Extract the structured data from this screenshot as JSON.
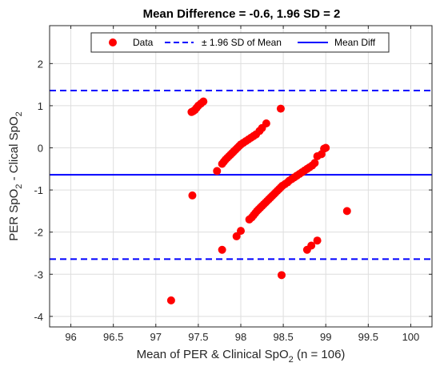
{
  "chart_data": {
    "type": "scatter",
    "title": "Mean Difference = -0.6, 1.96 SD = 2",
    "xlabel": {
      "prefix": "Mean of PER & Clinical SpO",
      "sub": "2",
      "suffix": " (n = 106)"
    },
    "ylabel": {
      "prefix": "PER SpO",
      "sub1": "2",
      "mid": " - Clical SpO",
      "sub2": "2"
    },
    "xlim": [
      95.75,
      100.25
    ],
    "ylim": [
      -4.25,
      2.9
    ],
    "xticks": [
      96,
      96.5,
      97,
      97.5,
      98,
      98.5,
      99,
      99.5,
      100
    ],
    "xtick_labels": [
      "96",
      "96.5",
      "97",
      "97.5",
      "98",
      "98.5",
      "99",
      "99.5",
      "100"
    ],
    "yticks": [
      -4,
      -3,
      -2,
      -1,
      0,
      1,
      2
    ],
    "ytick_labels": [
      "-4",
      "-3",
      "-2",
      "-1",
      "0",
      "1",
      "2"
    ],
    "grid": true,
    "legend_position": "top",
    "legend": {
      "data": "Data",
      "sd": "± 1.96 SD of Mean",
      "mean": "Mean Diff"
    },
    "mean_diff": -0.64,
    "upper_sd": 1.36,
    "lower_sd": -2.64,
    "colors": {
      "points": "#ff0000",
      "lines": "#0000ff"
    },
    "points": [
      [
        97.42,
        0.85
      ],
      [
        97.44,
        0.87
      ],
      [
        97.46,
        0.9
      ],
      [
        97.48,
        0.95
      ],
      [
        97.5,
        1.0
      ],
      [
        97.53,
        1.05
      ],
      [
        97.56,
        1.1
      ],
      [
        97.78,
        -0.38
      ],
      [
        97.8,
        -0.33
      ],
      [
        97.82,
        -0.28
      ],
      [
        97.84,
        -0.24
      ],
      [
        97.86,
        -0.2
      ],
      [
        97.88,
        -0.16
      ],
      [
        97.9,
        -0.12
      ],
      [
        97.92,
        -0.08
      ],
      [
        97.94,
        -0.04
      ],
      [
        97.96,
        0.0
      ],
      [
        97.98,
        0.04
      ],
      [
        98.0,
        0.08
      ],
      [
        98.03,
        0.12
      ],
      [
        98.06,
        0.16
      ],
      [
        98.09,
        0.2
      ],
      [
        98.12,
        0.24
      ],
      [
        98.15,
        0.28
      ],
      [
        98.18,
        0.32
      ],
      [
        98.22,
        0.4
      ],
      [
        98.25,
        0.47
      ],
      [
        98.3,
        0.58
      ],
      [
        97.72,
        -0.55
      ],
      [
        98.1,
        -1.7
      ],
      [
        98.13,
        -1.65
      ],
      [
        98.15,
        -1.6
      ],
      [
        98.17,
        -1.55
      ],
      [
        98.19,
        -1.5
      ],
      [
        98.21,
        -1.46
      ],
      [
        98.23,
        -1.42
      ],
      [
        98.25,
        -1.38
      ],
      [
        98.27,
        -1.34
      ],
      [
        98.29,
        -1.3
      ],
      [
        98.31,
        -1.26
      ],
      [
        98.33,
        -1.22
      ],
      [
        98.35,
        -1.18
      ],
      [
        98.37,
        -1.14
      ],
      [
        98.39,
        -1.1
      ],
      [
        98.41,
        -1.06
      ],
      [
        98.43,
        -1.02
      ],
      [
        98.45,
        -0.98
      ],
      [
        98.47,
        -0.94
      ],
      [
        98.49,
        -0.9
      ],
      [
        98.52,
        -0.86
      ],
      [
        98.55,
        -0.82
      ],
      [
        98.57,
        -0.78
      ],
      [
        98.6,
        -0.74
      ],
      [
        98.63,
        -0.7
      ],
      [
        98.66,
        -0.66
      ],
      [
        98.69,
        -0.62
      ],
      [
        98.72,
        -0.58
      ],
      [
        98.75,
        -0.54
      ],
      [
        98.78,
        -0.5
      ],
      [
        98.81,
        -0.46
      ],
      [
        98.84,
        -0.42
      ],
      [
        98.87,
        -0.36
      ],
      [
        98.9,
        -0.2
      ],
      [
        98.95,
        -0.15
      ],
      [
        99.0,
        0.0
      ],
      [
        98.98,
        -0.02
      ],
      [
        98.47,
        0.93
      ],
      [
        97.43,
        -1.13
      ],
      [
        98.0,
        -1.97
      ],
      [
        97.95,
        -2.1
      ],
      [
        97.78,
        -2.42
      ],
      [
        98.48,
        -3.02
      ],
      [
        97.18,
        -3.62
      ],
      [
        98.78,
        -2.42
      ],
      [
        98.83,
        -2.32
      ],
      [
        98.9,
        -2.2
      ],
      [
        99.25,
        -1.5
      ]
    ]
  }
}
